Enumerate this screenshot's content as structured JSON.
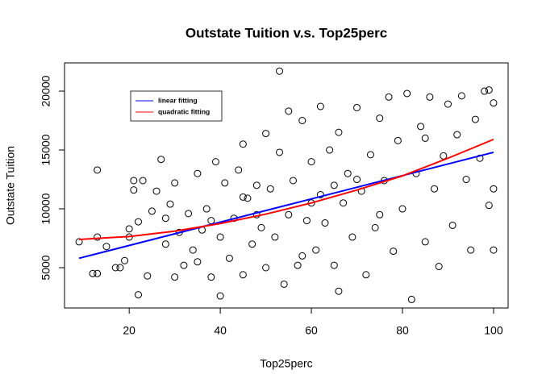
{
  "chart_data": {
    "type": "scatter",
    "title": "Outstate Tuition v.s. Top25perc",
    "x_label": "Top25perc",
    "y_label": "Outstate Tuition",
    "xlim": [
      5.8,
      103.2
    ],
    "ylim": [
      1575,
      22400
    ],
    "xticks": [
      20,
      40,
      60,
      80,
      100
    ],
    "yticks": [
      5000,
      10000,
      15000,
      20000
    ],
    "point_color": "#000000",
    "legend_position": "topleft",
    "points": {
      "x": [
        9,
        12,
        13,
        13,
        13,
        15,
        17,
        18,
        19,
        20,
        20,
        21,
        21,
        22,
        22,
        23,
        24,
        25,
        26,
        27,
        28,
        29,
        30,
        30,
        31,
        32,
        33,
        34,
        35,
        36,
        37,
        38,
        39,
        40,
        40,
        41,
        42,
        43,
        44,
        45,
        45,
        46,
        47,
        48,
        49,
        50,
        50,
        51,
        52,
        53,
        53,
        54,
        55,
        55,
        56,
        57,
        58,
        59,
        60,
        61,
        62,
        62,
        63,
        64,
        65,
        66,
        66,
        67,
        68,
        69,
        70,
        71,
        72,
        73,
        74,
        75,
        76,
        77,
        78,
        79,
        80,
        81,
        82,
        83,
        84,
        85,
        86,
        87,
        88,
        89,
        90,
        91,
        92,
        93,
        94,
        95,
        96,
        97,
        98,
        99,
        99,
        100,
        100,
        100,
        60,
        58,
        48,
        35,
        28,
        70,
        75,
        85,
        65,
        45,
        38
      ],
      "y": [
        7200,
        4500,
        4500,
        7600,
        13300,
        6800,
        5000,
        5000,
        5600,
        7600,
        8300,
        11600,
        12400,
        2700,
        8900,
        12400,
        4300,
        9800,
        11500,
        14200,
        7000,
        10400,
        4200,
        12200,
        8000,
        5200,
        9600,
        6500,
        13000,
        8200,
        10000,
        4200,
        14000,
        2600,
        7600,
        12200,
        5800,
        9200,
        13300,
        15500,
        4400,
        10900,
        7000,
        12000,
        8400,
        5000,
        16400,
        11700,
        7600,
        21700,
        14800,
        3600,
        9500,
        18300,
        12400,
        5200,
        17500,
        9000,
        14000,
        6500,
        18700,
        11200,
        8800,
        15000,
        5200,
        3000,
        16500,
        10500,
        13000,
        7600,
        18600,
        11500,
        4400,
        14600,
        8400,
        17700,
        12400,
        19500,
        6400,
        15800,
        10000,
        19800,
        2300,
        13000,
        17000,
        7200,
        19500,
        11700,
        5100,
        14500,
        18900,
        8600,
        16300,
        19600,
        12500,
        6500,
        17600,
        14300,
        20000,
        10300,
        20100,
        11700,
        19000,
        6500,
        10500,
        6000,
        9500,
        5500,
        9200,
        12500,
        9500,
        16000,
        12000,
        11000,
        9000
      ]
    },
    "series": [
      {
        "name": "linear fitting",
        "color": "#0000ff",
        "x": [
          9,
          100
        ],
        "values": [
          5800,
          14800
        ]
      },
      {
        "name": "quadratic fitting",
        "color": "#ff0000",
        "x": [
          9,
          20,
          30,
          40,
          50,
          60,
          70,
          80,
          90,
          100
        ],
        "values": [
          7400,
          7650,
          8100,
          8750,
          9550,
          10500,
          11600,
          12800,
          14300,
          15900
        ]
      }
    ]
  }
}
